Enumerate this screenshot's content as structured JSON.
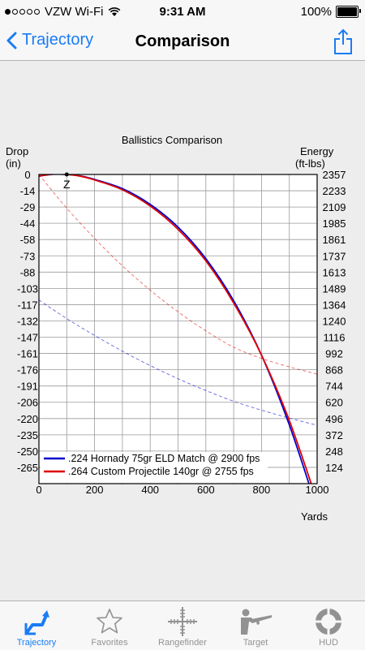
{
  "status": {
    "carrier": "VZW Wi-Fi",
    "time": "9:31 AM",
    "battery": "100%"
  },
  "nav": {
    "back_label": "Trajectory",
    "title": "Comparison"
  },
  "chart_data": {
    "type": "line",
    "title": "Ballistics Comparison",
    "left_axis_label": [
      "Drop",
      "(in)"
    ],
    "right_axis_label": [
      "Energy",
      "(ft-lbs)"
    ],
    "xlabel": "Yards",
    "x_ticks": [
      "0",
      "200",
      "400",
      "600",
      "800",
      "1000"
    ],
    "xlim": [
      0,
      1000
    ],
    "left_ticks": [
      "0",
      "-14",
      "-29",
      "-44",
      "-58",
      "-73",
      "-88",
      "-103",
      "-117",
      "-132",
      "-147",
      "-161",
      "-176",
      "-191",
      "-206",
      "-220",
      "-235",
      "-250",
      "-265"
    ],
    "right_ticks": [
      "2357",
      "2233",
      "2109",
      "1985",
      "1861",
      "1737",
      "1613",
      "1489",
      "1364",
      "1240",
      "1116",
      "992",
      "868",
      "744",
      "620",
      "496",
      "372",
      "248",
      "124"
    ],
    "ylim_drop": [
      -279,
      0
    ],
    "ylim_energy": [
      0,
      2357
    ],
    "zero_marker": {
      "label": "Z",
      "x": 100,
      "y": 0
    },
    "grid": true,
    "legend_position": "bottom-left",
    "series": [
      {
        "name": ".224 Hornady 75gr ELD Match @ 2900 fps",
        "color": "#0000cc",
        "drop": {
          "x": [
            0,
            50,
            100,
            150,
            200,
            300,
            400,
            500,
            600,
            700,
            800,
            900,
            1000
          ],
          "y": [
            -1.5,
            0.2,
            0,
            -1.4,
            -4.5,
            -12.8,
            -27.0,
            -47.5,
            -76,
            -114,
            -163,
            -226,
            -302
          ]
        },
        "energy": {
          "x": [
            0,
            100,
            200,
            300,
            400,
            500,
            600,
            700,
            800,
            900,
            1000
          ],
          "y": [
            1400,
            1258,
            1130,
            1010,
            900,
            800,
            710,
            628,
            560,
            500,
            445
          ]
        }
      },
      {
        "name": ".264 Custom Projectile 140gr @ 2755 fps",
        "color": "#e00000",
        "drop": {
          "x": [
            0,
            50,
            100,
            150,
            200,
            300,
            400,
            500,
            600,
            700,
            800,
            900,
            1000
          ],
          "y": [
            -1.5,
            0.25,
            0,
            -1.6,
            -4.9,
            -13.8,
            -28.5,
            -49.5,
            -78,
            -116,
            -163,
            -222,
            -295
          ]
        },
        "energy": {
          "x": [
            0,
            100,
            200,
            300,
            400,
            500,
            600,
            700,
            800,
            900,
            1000
          ],
          "y": [
            2357,
            2100,
            1870,
            1660,
            1475,
            1310,
            1165,
            1040,
            955,
            890,
            835
          ]
        }
      }
    ]
  },
  "tabs": [
    {
      "label": "Trajectory",
      "icon": "trajectory-icon",
      "active": true
    },
    {
      "label": "Favorites",
      "icon": "star-icon",
      "active": false
    },
    {
      "label": "Rangefinder",
      "icon": "crosshair-icon",
      "active": false
    },
    {
      "label": "Target",
      "icon": "shooter-icon",
      "active": false
    },
    {
      "label": "HUD",
      "icon": "hud-ring-icon",
      "active": false
    }
  ],
  "colors": {
    "accent": "#1a7cf5",
    "inactive": "#929292",
    "chart_bg": "#ededed",
    "plot_bg": "#ffffff",
    "grid": "#9a9a9a"
  }
}
